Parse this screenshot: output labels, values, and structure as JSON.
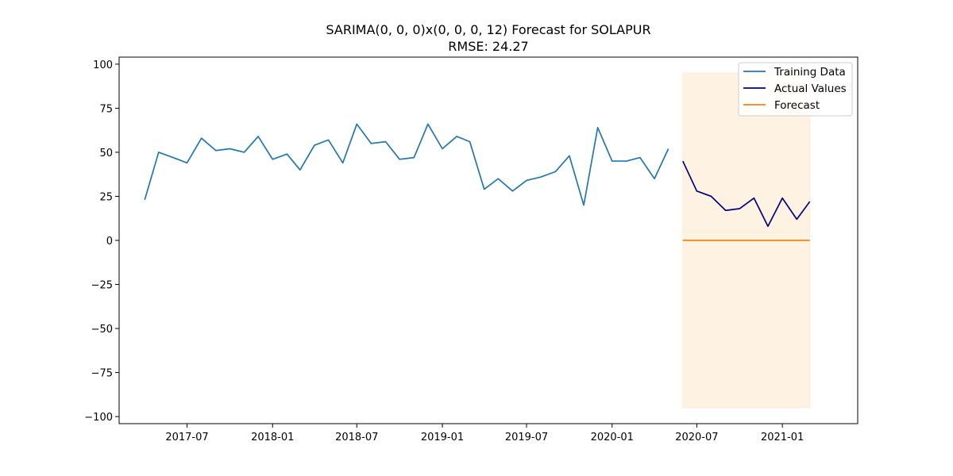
{
  "chart_data": {
    "type": "line",
    "title": "SARIMA(0, 0, 0)x(0, 0, 0, 12) Forecast for SOLAPUR",
    "subtitle": "RMSE: 24.27",
    "xlabel": "",
    "ylabel": "",
    "ylim": [
      -104,
      104
    ],
    "xlim": [
      "2017-02-05",
      "2021-06-12"
    ],
    "yticks": [
      -100,
      -75,
      -50,
      -25,
      0,
      25,
      50,
      75,
      100
    ],
    "ytick_labels": [
      "−100",
      "−75",
      "−50",
      "−25",
      "0",
      "25",
      "50",
      "75",
      "100"
    ],
    "xticks": [
      "2017-07-01",
      "2018-01-01",
      "2018-07-01",
      "2019-01-01",
      "2019-07-01",
      "2020-01-01",
      "2020-07-01",
      "2021-01-01"
    ],
    "xtick_labels": [
      "2017-07",
      "2018-01",
      "2018-07",
      "2019-01",
      "2019-07",
      "2020-01",
      "2020-07",
      "2021-01"
    ],
    "grid": false,
    "legend_position": "top-right",
    "series": [
      {
        "name": "Training Data",
        "color": "#1f77b4",
        "x": [
          "2017-04-01",
          "2017-05-01",
          "2017-06-01",
          "2017-07-01",
          "2017-08-01",
          "2017-09-01",
          "2017-10-01",
          "2017-11-01",
          "2017-12-01",
          "2018-01-01",
          "2018-02-01",
          "2018-03-01",
          "2018-04-01",
          "2018-05-01",
          "2018-06-01",
          "2018-07-01",
          "2018-08-01",
          "2018-09-01",
          "2018-10-01",
          "2018-11-01",
          "2018-12-01",
          "2019-01-01",
          "2019-02-01",
          "2019-03-01",
          "2019-04-01",
          "2019-05-01",
          "2019-06-01",
          "2019-07-01",
          "2019-08-01",
          "2019-09-01",
          "2019-10-01",
          "2019-11-01",
          "2019-12-01",
          "2020-01-01",
          "2020-02-01",
          "2020-03-01",
          "2020-04-01",
          "2020-05-01"
        ],
        "values": [
          23,
          50,
          47,
          44,
          58,
          51,
          52,
          50,
          59,
          46,
          49,
          40,
          54,
          57,
          44,
          66,
          55,
          56,
          46,
          47,
          66,
          52,
          59,
          56,
          29,
          35,
          28,
          34,
          36,
          39,
          48,
          20,
          64,
          45,
          45,
          47,
          35,
          52
        ]
      },
      {
        "name": "Actual Values",
        "color": "#000080",
        "x": [
          "2020-06-01",
          "2020-07-01",
          "2020-08-01",
          "2020-09-01",
          "2020-10-01",
          "2020-11-01",
          "2020-12-01",
          "2021-01-01",
          "2021-02-01",
          "2021-03-01"
        ],
        "values": [
          45,
          28,
          25,
          17,
          18,
          24,
          8,
          24,
          12,
          22
        ]
      },
      {
        "name": "Forecast",
        "color": "#ff7f0e",
        "x": [
          "2020-06-01",
          "2020-07-01",
          "2020-08-01",
          "2020-09-01",
          "2020-10-01",
          "2020-11-01",
          "2020-12-01",
          "2021-01-01",
          "2021-02-01",
          "2021-03-01"
        ],
        "values": [
          0,
          0,
          0,
          0,
          0,
          0,
          0,
          0,
          0,
          0
        ]
      }
    ],
    "confidence_band": {
      "color": "#fdebd0",
      "x_start": "2020-06-01",
      "x_end": "2021-03-01",
      "lower": -95,
      "upper": 95
    }
  }
}
